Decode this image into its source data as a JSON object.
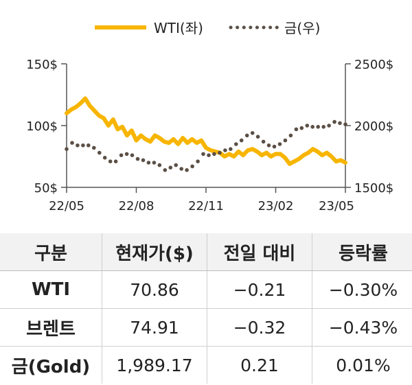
{
  "chart_data": {
    "type": "line",
    "legend": {
      "position": "top",
      "entries": [
        "WTI(좌)",
        "금(우)"
      ]
    },
    "x_ticks": [
      "22/05",
      "22/08",
      "22/11",
      "23/02",
      "23/05"
    ],
    "y_left": {
      "ticks": [
        "150$",
        "100$",
        "50$"
      ],
      "range": [
        50,
        150
      ]
    },
    "y_right": {
      "ticks": [
        "2500$",
        "2000$",
        "1500$"
      ],
      "range": [
        1500,
        2500
      ]
    },
    "grid": false,
    "series": [
      {
        "name": "WTI(좌)",
        "axis": "left",
        "color": "#f7b500",
        "style": "solid",
        "points": [
          [
            0,
            110
          ],
          [
            1,
            113
          ],
          [
            2,
            115
          ],
          [
            3,
            118
          ],
          [
            4,
            122
          ],
          [
            5,
            116
          ],
          [
            6,
            112
          ],
          [
            7,
            108
          ],
          [
            8,
            106
          ],
          [
            9,
            100
          ],
          [
            10,
            105
          ],
          [
            11,
            97
          ],
          [
            12,
            99
          ],
          [
            13,
            92
          ],
          [
            14,
            96
          ],
          [
            15,
            88
          ],
          [
            16,
            92
          ],
          [
            17,
            89
          ],
          [
            18,
            87
          ],
          [
            19,
            92
          ],
          [
            20,
            90
          ],
          [
            21,
            87
          ],
          [
            22,
            86
          ],
          [
            23,
            89
          ],
          [
            24,
            85
          ],
          [
            25,
            90
          ],
          [
            26,
            86
          ],
          [
            27,
            89
          ],
          [
            28,
            86
          ],
          [
            29,
            88
          ],
          [
            30,
            82
          ],
          [
            31,
            80
          ],
          [
            32,
            79
          ],
          [
            33,
            78
          ],
          [
            34,
            75
          ],
          [
            35,
            77
          ],
          [
            36,
            75
          ],
          [
            37,
            79
          ],
          [
            38,
            76
          ],
          [
            39,
            80
          ],
          [
            40,
            81
          ],
          [
            41,
            79
          ],
          [
            42,
            76
          ],
          [
            43,
            78
          ],
          [
            44,
            75
          ],
          [
            45,
            77
          ],
          [
            46,
            77
          ],
          [
            47,
            74
          ],
          [
            48,
            69
          ],
          [
            49,
            71
          ],
          [
            50,
            73
          ],
          [
            51,
            76
          ],
          [
            52,
            78
          ],
          [
            53,
            81
          ],
          [
            54,
            79
          ],
          [
            55,
            76
          ],
          [
            56,
            78
          ],
          [
            57,
            75
          ],
          [
            58,
            71
          ],
          [
            59,
            72
          ],
          [
            60,
            70
          ]
        ]
      },
      {
        "name": "금(우)",
        "axis": "right",
        "color": "#5b4f45",
        "style": "dotted",
        "points": [
          [
            0,
            1810
          ],
          [
            1,
            1860
          ],
          [
            2,
            1840
          ],
          [
            3,
            1840
          ],
          [
            4,
            1840
          ],
          [
            5,
            1820
          ],
          [
            6,
            1780
          ],
          [
            7,
            1740
          ],
          [
            8,
            1710
          ],
          [
            9,
            1710
          ],
          [
            10,
            1760
          ],
          [
            11,
            1770
          ],
          [
            12,
            1760
          ],
          [
            13,
            1730
          ],
          [
            14,
            1720
          ],
          [
            15,
            1700
          ],
          [
            16,
            1700
          ],
          [
            17,
            1680
          ],
          [
            18,
            1640
          ],
          [
            19,
            1660
          ],
          [
            20,
            1680
          ],
          [
            21,
            1650
          ],
          [
            22,
            1640
          ],
          [
            23,
            1670
          ],
          [
            24,
            1710
          ],
          [
            25,
            1770
          ],
          [
            26,
            1760
          ],
          [
            27,
            1770
          ],
          [
            28,
            1780
          ],
          [
            29,
            1800
          ],
          [
            30,
            1810
          ],
          [
            31,
            1850
          ],
          [
            32,
            1880
          ],
          [
            33,
            1920
          ],
          [
            34,
            1940
          ],
          [
            35,
            1910
          ],
          [
            36,
            1870
          ],
          [
            37,
            1840
          ],
          [
            38,
            1830
          ],
          [
            39,
            1850
          ],
          [
            40,
            1880
          ],
          [
            41,
            1920
          ],
          [
            42,
            1970
          ],
          [
            43,
            1980
          ],
          [
            44,
            2000
          ],
          [
            45,
            1990
          ],
          [
            46,
            1990
          ],
          [
            47,
            1990
          ],
          [
            48,
            2000
          ],
          [
            49,
            2030
          ],
          [
            50,
            2020
          ],
          [
            51,
            2010
          ]
        ]
      }
    ]
  },
  "table": {
    "headers": [
      "구분",
      "현재가($)",
      "전일 대비",
      "등락률"
    ],
    "rows": [
      [
        "WTI",
        "70.86",
        "−0.21",
        "−0.30%"
      ],
      [
        "브렌트",
        "74.91",
        "−0.32",
        "−0.43%"
      ],
      [
        "금(Gold)",
        "1,989.17",
        "0.21",
        "0.01%"
      ]
    ]
  }
}
